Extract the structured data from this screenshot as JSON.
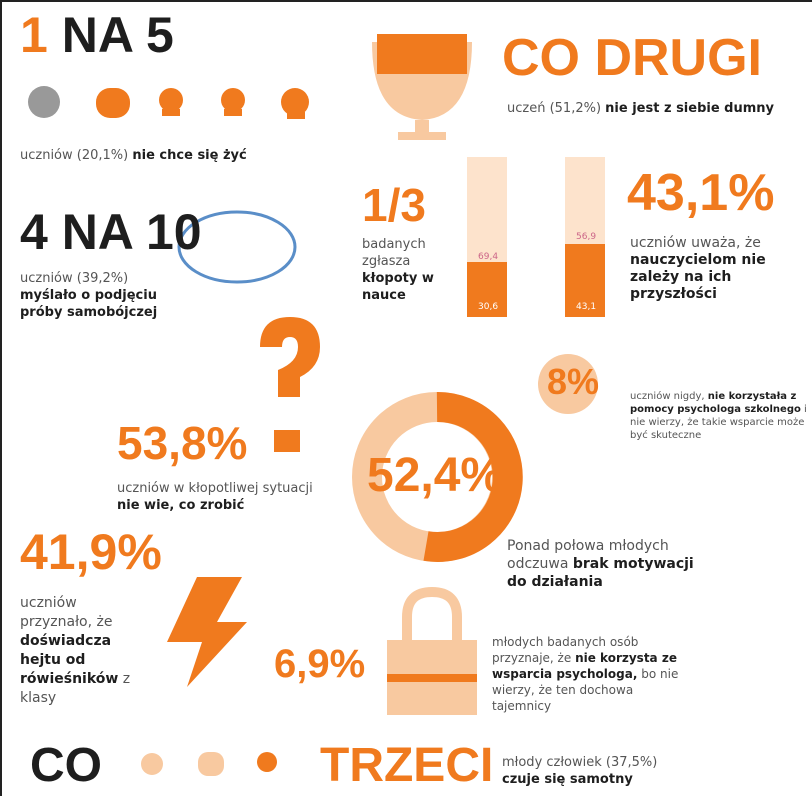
{
  "s1": {
    "head_a": "1",
    "head_b": "NA 5",
    "text": "uczniów (20,1%)",
    "bold": "nie chce się żyć"
  },
  "s2": {
    "head_b": "CO DRUGI",
    "text": "uczeń (51,2%)",
    "bold": "nie jest z siebie dumny"
  },
  "s3": {
    "head": "4 NA 10",
    "text": "uczniów (39,2%)",
    "bold": "myślało o podjęciu próby samobójczej"
  },
  "s4": {
    "head": "1/3",
    "text": "badanych zgłasza",
    "bold": "kłopoty w nauce",
    "bar1_top": "69,4",
    "bar1_bottom": "30,6",
    "bar2_top": "56,9",
    "bar2_bottom": "43,1"
  },
  "s5": {
    "head": "43,1%",
    "text": "uczniów uważa, że",
    "bold": "nauczycielom nie zależy na ich przyszłości"
  },
  "s6": {
    "head": "8%",
    "text": "uczniów nigdy,",
    "bold": "nie korzystała z pomocy psychologa szkolnego",
    "tail": "i nie wierzy, że takie wsparcie może być skuteczne"
  },
  "s7": {
    "head": "53,8%",
    "text": "uczniów w kłopotliwej sytuacji",
    "bold": "nie wie, co zrobić"
  },
  "s8": {
    "head": "52,4%",
    "text": "Ponad połowa młodych odczuwa",
    "bold": "brak motywacji do działania"
  },
  "s9": {
    "head": "41,9%",
    "text": "uczniów przyznało, że",
    "bold": "doświadcza hejtu od rówieśników",
    "tail": "z klasy"
  },
  "s10": {
    "head": "6,9%",
    "text": "młodych badanych osób przyznaje, że",
    "bold": "nie korzysta ze wsparcia psychologa,",
    "tail": "bo nie wierzy, że ten dochowa tajemnicy"
  },
  "s11": {
    "head_a": "CO",
    "head_b": "TRZECI",
    "text": "młody człowiek (37,5%)",
    "bold": "czuje się samotny"
  }
}
